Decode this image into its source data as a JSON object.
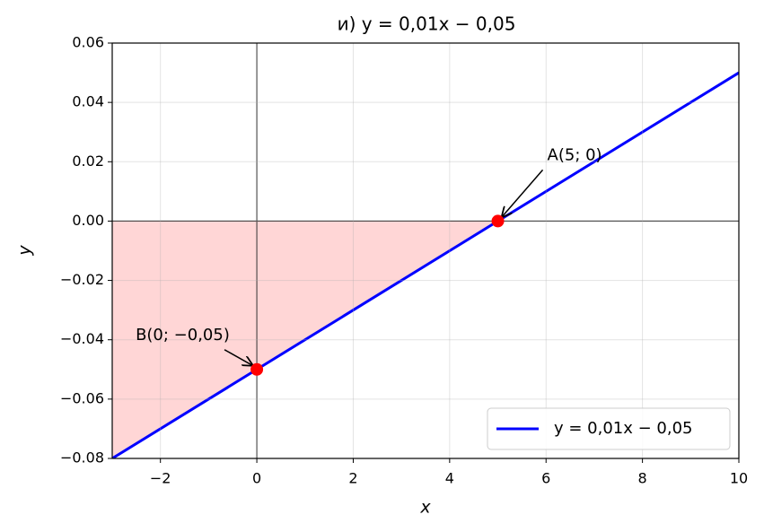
{
  "chart_data": {
    "type": "line",
    "title": "и) y = 0,01x − 0,05",
    "x_label": "x",
    "y_label": "y",
    "series": [
      {
        "name": "y = 0,01x − 0,05",
        "color": "#0000ff",
        "x": [
          -3,
          10
        ],
        "values": [
          -0.08,
          0.05
        ]
      }
    ],
    "fill_between": {
      "x": [
        -3,
        5
      ],
      "values": [
        -0.08,
        0
      ],
      "base": 0,
      "color": "#ffd6d6"
    },
    "points": [
      {
        "label": "A(5; 0)",
        "x": 5,
        "y": 0,
        "color": "#ff0000"
      },
      {
        "label": "B(0; −0,05)",
        "x": 0,
        "y": -0.05,
        "color": "#ff0000"
      }
    ],
    "xlim": [
      -3,
      10
    ],
    "ylim": [
      -0.08,
      0.06
    ],
    "xticks": [
      {
        "value": -2,
        "label": "−2"
      },
      0,
      2,
      4,
      6,
      8,
      10
    ],
    "yticks": [
      {
        "value": -0.08,
        "label": "−0.08"
      },
      {
        "value": -0.06,
        "label": "−0.06"
      },
      {
        "value": -0.04,
        "label": "−0.04"
      },
      {
        "value": -0.02,
        "label": "−0.02"
      },
      {
        "value": 0,
        "label": "0.00"
      },
      0.02,
      0.04,
      0.06
    ],
    "grid": true,
    "legend": "lower right"
  }
}
